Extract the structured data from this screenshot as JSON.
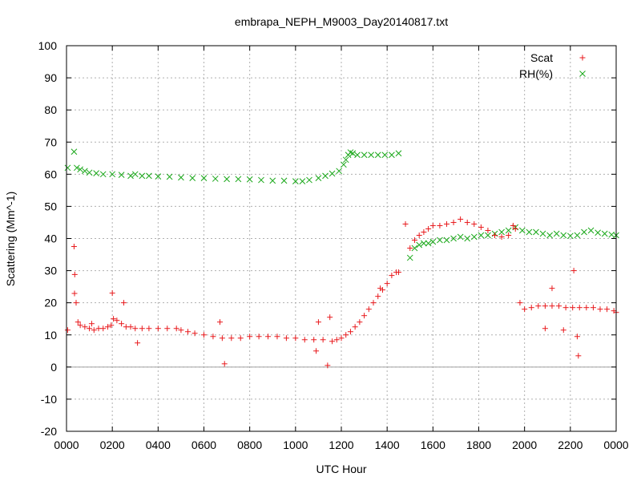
{
  "chart_data": {
    "type": "scatter",
    "title": "embrapa_NEPH_M9003_Day20140817.txt",
    "xlabel": "UTC Hour",
    "ylabel": "Scattering (Mm^-1)",
    "xlim": [
      0,
      24
    ],
    "ylim": [
      -20,
      100
    ],
    "x_ticks": [
      {
        "v": 0,
        "label": "0000"
      },
      {
        "v": 2,
        "label": "0200"
      },
      {
        "v": 4,
        "label": "0400"
      },
      {
        "v": 6,
        "label": "0600"
      },
      {
        "v": 8,
        "label": "0800"
      },
      {
        "v": 10,
        "label": "1000"
      },
      {
        "v": 12,
        "label": "1200"
      },
      {
        "v": 14,
        "label": "1400"
      },
      {
        "v": 16,
        "label": "1600"
      },
      {
        "v": 18,
        "label": "1800"
      },
      {
        "v": 20,
        "label": "2000"
      },
      {
        "v": 22,
        "label": "2200"
      },
      {
        "v": 24,
        "label": "0000"
      }
    ],
    "y_ticks": [
      -20,
      -10,
      0,
      10,
      20,
      30,
      40,
      50,
      60,
      70,
      80,
      90,
      100
    ],
    "grid": true,
    "zero_line": true,
    "legend_position": "top-right",
    "series": [
      {
        "name": "Scat",
        "marker": "plus",
        "color": "#e8191c",
        "x": [
          0.05,
          0.33,
          0.42,
          0.5,
          0.6,
          0.8,
          1.0,
          1.2,
          1.4,
          1.6,
          1.8,
          1.95,
          2.05,
          2.2,
          2.4,
          2.6,
          2.8,
          3.0,
          3.3,
          3.6,
          4.0,
          4.4,
          4.8,
          5.0,
          5.3,
          5.6,
          6.0,
          6.4,
          6.8,
          7.2,
          7.6,
          8.0,
          8.4,
          8.8,
          9.2,
          9.6,
          10.0,
          10.4,
          10.8,
          11.2,
          11.6,
          11.8,
          12.0,
          12.2,
          12.4,
          12.6,
          12.8,
          13.0,
          13.2,
          13.4,
          13.6,
          13.8,
          14.0,
          14.2,
          14.4,
          14.5,
          15.0,
          15.2,
          15.4,
          15.6,
          15.8,
          16.0,
          16.3,
          16.6,
          16.9,
          17.2,
          17.5,
          17.8,
          18.1,
          18.4,
          18.7,
          19.0,
          19.3,
          19.5,
          19.6,
          19.8,
          20.0,
          20.3,
          20.6,
          20.9,
          21.2,
          21.5,
          21.8,
          22.1,
          22.4,
          22.7,
          23.0,
          23.3,
          23.6,
          23.9,
          24.0,
          0.36,
          0.35,
          1.1,
          2.0,
          2.5,
          3.1,
          6.7,
          6.9,
          10.9,
          11.0,
          11.4,
          11.5,
          13.7,
          14.8,
          20.9,
          21.2,
          21.7,
          22.15,
          22.3,
          22.35
        ],
        "y": [
          11.5,
          37.5,
          20,
          14,
          13,
          12.5,
          12,
          11.5,
          12,
          12,
          12.5,
          13,
          15,
          14.5,
          13.5,
          12.5,
          12.5,
          12,
          12,
          12,
          12,
          12,
          12,
          11.5,
          11,
          10.5,
          10,
          9.5,
          9,
          9,
          9,
          9.5,
          9.5,
          9.5,
          9.5,
          9,
          9,
          8.5,
          8.5,
          8.5,
          8,
          8.5,
          9,
          10,
          11,
          12.5,
          14,
          16,
          18,
          20,
          22,
          24,
          26,
          28.5,
          29.5,
          29.5,
          37,
          39.5,
          41,
          42,
          43,
          44,
          44,
          44.5,
          45,
          46,
          45,
          44.5,
          43.5,
          42.5,
          41,
          40.5,
          41,
          44,
          43,
          20,
          18,
          18.5,
          19,
          19,
          19,
          19,
          18.5,
          18.5,
          18.5,
          18.5,
          18.5,
          18,
          18,
          17.5,
          17,
          28.8,
          22.9,
          13.5,
          23,
          20,
          7.5,
          14,
          1,
          5,
          14,
          0.5,
          15.5,
          24.5,
          44.5,
          12,
          24.5,
          11.5,
          30,
          9.5,
          3.5
        ]
      },
      {
        "name": "RH(%)",
        "marker": "x",
        "color": "#1aa81a",
        "x": [
          0.05,
          0.33,
          0.45,
          0.6,
          0.8,
          1.0,
          1.3,
          1.6,
          2.0,
          2.4,
          2.8,
          3.0,
          3.3,
          3.6,
          4.0,
          4.5,
          5.0,
          5.5,
          6.0,
          6.5,
          7.0,
          7.5,
          8.0,
          8.5,
          9.0,
          9.5,
          10.0,
          10.3,
          10.6,
          11.0,
          11.3,
          11.6,
          11.9,
          12.1,
          12.2,
          12.3,
          12.4,
          12.5,
          12.7,
          13.0,
          13.3,
          13.6,
          13.9,
          14.2,
          14.5,
          15.0,
          15.2,
          15.4,
          15.6,
          15.8,
          16.0,
          16.3,
          16.6,
          16.9,
          17.2,
          17.5,
          17.8,
          18.1,
          18.4,
          18.7,
          19.0,
          19.3,
          19.6,
          19.9,
          20.2,
          20.5,
          20.8,
          21.1,
          21.4,
          21.7,
          22.0,
          22.3,
          22.6,
          22.9,
          23.2,
          23.5,
          23.8,
          24.0
        ],
        "y": [
          62,
          67,
          62,
          61.5,
          61,
          60.5,
          60.3,
          60,
          60,
          59.8,
          59.5,
          60,
          59.5,
          59.5,
          59.3,
          59.2,
          59,
          58.8,
          58.8,
          58.6,
          58.5,
          58.5,
          58.4,
          58.2,
          58,
          58,
          57.8,
          57.8,
          58.2,
          58.8,
          59.5,
          60.2,
          61,
          63,
          64.5,
          66,
          66.8,
          66.5,
          66,
          66,
          66,
          66,
          66,
          66,
          66.5,
          34,
          37,
          38,
          38.5,
          38.5,
          39,
          39.5,
          39.5,
          40,
          40.5,
          40,
          40.5,
          41,
          41,
          41.5,
          42,
          42.5,
          43.5,
          42.5,
          42,
          42,
          41.5,
          41,
          41.5,
          41,
          40.8,
          41,
          42,
          42.5,
          41.8,
          41.5,
          41.2,
          41
        ]
      }
    ]
  }
}
